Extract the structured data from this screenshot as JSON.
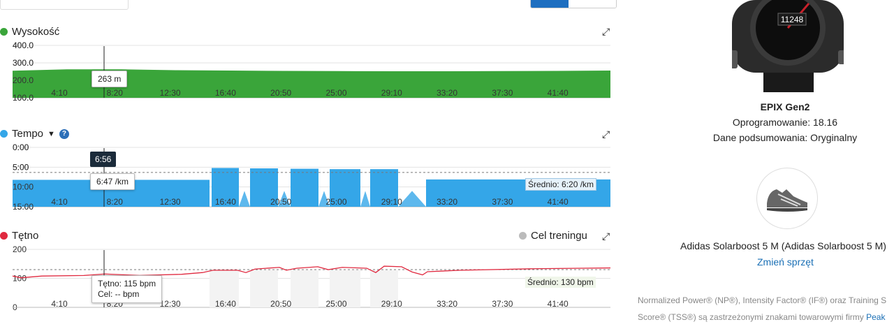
{
  "toolbar": {},
  "charts": {
    "elevation": {
      "title": "Wysokość",
      "color": "#3aa53a",
      "yticks": [
        "400.0",
        "300.0",
        "200.0",
        "100.0"
      ],
      "tooltip": "263 m"
    },
    "pace": {
      "title": "Tempo",
      "color": "#34a6e8",
      "yticks": [
        "0:00",
        "5:00",
        "10:00",
        "15:00"
      ],
      "tooltip_dark": "6:56",
      "tooltip": "6:47 /km",
      "average": "Średnio: 6:20 /km"
    },
    "heart": {
      "title": "Tętno",
      "color": "#e0293f",
      "legend": "Cel treningu",
      "yticks": [
        "200",
        "100",
        "0"
      ],
      "tooltip_line1": "Tętno: 115 bpm",
      "tooltip_line2": "Cel: -- bpm",
      "average": "Średnio: 130 bpm"
    },
    "xticks": [
      "4:10",
      "8:20",
      "12:30",
      "16:40",
      "20:50",
      "25:00",
      "29:10",
      "33:20",
      "37:30",
      "41:40"
    ]
  },
  "chart_data": [
    {
      "type": "area",
      "title": "Wysokość",
      "ylabel": "",
      "ylim": [
        100,
        400
      ],
      "x": [
        "0:00",
        "4:10",
        "8:20",
        "12:30",
        "16:40",
        "20:50",
        "25:00",
        "29:10",
        "33:20",
        "37:30",
        "41:40",
        "45:00"
      ],
      "series": [
        {
          "name": "Wysokość",
          "values": [
            255,
            263,
            263,
            258,
            256,
            254,
            253,
            252,
            252,
            253,
            254,
            256
          ]
        }
      ]
    },
    {
      "type": "area",
      "title": "Tempo",
      "ylim": [
        0,
        15
      ],
      "average": "6:20 /km",
      "x": [
        "0:00",
        "4:10",
        "8:20",
        "12:30",
        "16:40",
        "20:50",
        "25:00",
        "29:10",
        "33:20",
        "37:30",
        "41:40",
        "45:00"
      ],
      "series": [
        {
          "name": "Tempo",
          "values_min_per_km": [
            8.5,
            8.2,
            7.9,
            8.0,
            4.5,
            4.7,
            4.6,
            4.5,
            8.0,
            8.1,
            8.2,
            8.3
          ]
        }
      ]
    },
    {
      "type": "line",
      "title": "Tętno",
      "ylim": [
        0,
        200
      ],
      "average": "130 bpm",
      "x": [
        "0:00",
        "4:10",
        "8:20",
        "12:30",
        "16:40",
        "20:50",
        "25:00",
        "29:10",
        "33:20",
        "37:30",
        "41:40",
        "45:00"
      ],
      "series": [
        {
          "name": "Tętno",
          "values": [
            110,
            116,
            115,
            122,
            135,
            148,
            150,
            156,
            128,
            132,
            136,
            137
          ]
        }
      ]
    }
  ],
  "device": {
    "name": "EPIX Gen2",
    "watch_number": "11248",
    "software": "Oprogramowanie: 18.16",
    "summary_data": "Dane podsumowania: Oryginalny"
  },
  "gear": {
    "name": "Adidas Solarboost 5 M (Adidas Solarboost 5 M)",
    "change_link": "Zmień sprzęt"
  },
  "footnote": {
    "line1": "Normalized Power® (NP®), Intensity Factor® (IF®) oraz Training S",
    "line2": "Score® (TSS®) są zastrzeżonymi znakami towarowymi firmy ",
    "link": "Peak"
  }
}
